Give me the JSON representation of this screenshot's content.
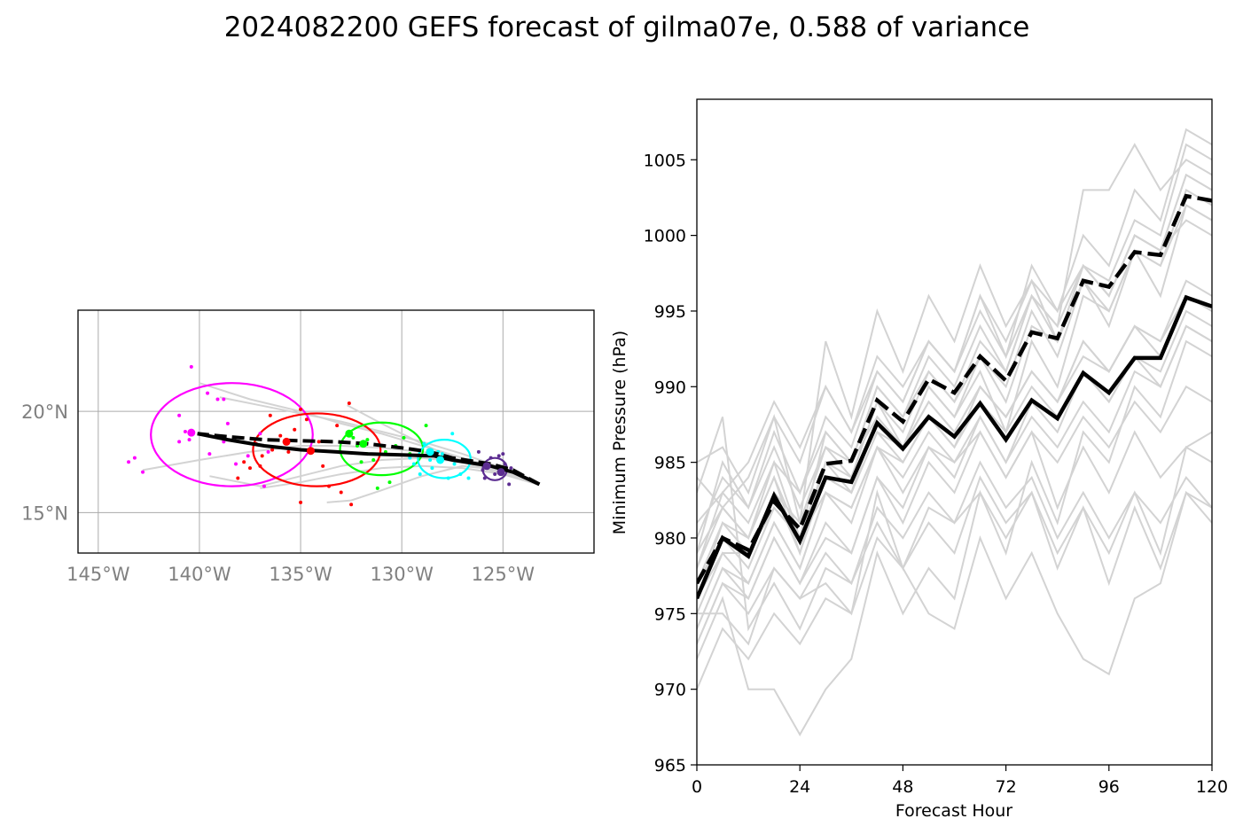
{
  "figure": {
    "title": "2024082200 GEFS forecast of gilma07e, 0.588 of variance"
  },
  "chart_data": [
    {
      "type": "scatter",
      "panel": "track-map",
      "x_ticks": [
        "145°W",
        "140°W",
        "135°W",
        "130°W",
        "125°W"
      ],
      "y_ticks": [
        "15°N",
        "20°N"
      ],
      "xlim": [
        -146,
        -120.5
      ],
      "ylim": [
        13,
        25
      ],
      "grid": true,
      "colors": {
        "ellipse_0": "#ff00ff",
        "ellipse_1": "#ff0000",
        "ellipse_2": "#00ff00",
        "ellipse_3": "#00ffff",
        "ellipse_4": "#5c2d91",
        "members": "#d3d3d3",
        "mean": "#000000"
      },
      "mean_track": {
        "lon": [
          -123.2,
          -124.5,
          -125.6,
          -127.5,
          -128.4,
          -130,
          -131.7,
          -133.3,
          -135,
          -136.8,
          -138.6,
          -140.1
        ],
        "lat": [
          16.4,
          17.0,
          17.3,
          17.6,
          17.8,
          17.85,
          17.9,
          18.0,
          18.1,
          18.3,
          18.6,
          18.9
        ]
      },
      "dashed_track": {
        "lon": [
          -123.2,
          -124.5,
          -125.6,
          -127.5,
          -128.6,
          -130,
          -131.7,
          -133.3,
          -135,
          -136.8,
          -138.6,
          -140.1
        ],
        "lat": [
          16.4,
          17.1,
          17.4,
          17.7,
          18.0,
          18.2,
          18.4,
          18.5,
          18.55,
          18.6,
          18.75,
          18.9
        ]
      },
      "uncertainty_ellipses": [
        {
          "lon": -138.4,
          "lat": 18.85,
          "half_width_deg": 4.0,
          "half_height_deg": 2.55,
          "color": "#ff00ff"
        },
        {
          "lon": -134.2,
          "lat": 18.1,
          "half_width_deg": 3.15,
          "half_height_deg": 1.8,
          "color": "#ff0000"
        },
        {
          "lon": -131.0,
          "lat": 18.15,
          "half_width_deg": 2.05,
          "half_height_deg": 1.3,
          "color": "#00ff00"
        },
        {
          "lon": -127.9,
          "lat": 17.65,
          "half_width_deg": 1.3,
          "half_height_deg": 0.95,
          "color": "#00ffff"
        },
        {
          "lon": -125.4,
          "lat": 17.15,
          "half_width_deg": 0.6,
          "half_height_deg": 0.55,
          "color": "#5c2d91"
        }
      ],
      "member_positions": [
        {
          "color": "#ff00ff",
          "lon": [
            -140.4,
            -139.6,
            -139.1,
            -138.8,
            -141.0,
            -140.7,
            -142.8,
            -143.2,
            -143.5,
            -140.5,
            -138.6,
            -136.6,
            -137.0,
            -136.8,
            -139.5,
            -141.0,
            -137.6,
            -138.2,
            -138.8
          ],
          "lat": [
            22.2,
            20.9,
            20.6,
            20.6,
            19.8,
            19.0,
            17.0,
            17.7,
            17.5,
            18.6,
            19.4,
            18.0,
            18.9,
            16.3,
            17.9,
            18.5,
            17.8,
            17.4,
            18.5
          ]
        },
        {
          "color": "#ff0000",
          "lon": [
            -132.6,
            -135.0,
            -134.7,
            -135.3,
            -136.0,
            -137.2,
            -136.4,
            -136.9,
            -137.8,
            -137.5,
            -138.1,
            -133.9,
            -133.6,
            -133.0,
            -134.1,
            -135.6,
            -132.5,
            -135.0,
            -133.2,
            -136.5,
            -137.0
          ],
          "lat": [
            20.4,
            20.1,
            19.6,
            19.1,
            18.8,
            18.4,
            18.1,
            17.8,
            17.5,
            17.2,
            16.7,
            17.3,
            16.3,
            16.0,
            18.5,
            18.0,
            15.4,
            15.5,
            19.3,
            19.8,
            17.3
          ]
        },
        {
          "color": "#00ff00",
          "lon": [
            -129.9,
            -130.8,
            -131.4,
            -132.4,
            -131.0,
            -131.7,
            -132.6,
            -130.3,
            -129.6,
            -131.2,
            -130.6,
            -132.0,
            -131.7,
            -133.1,
            -132.2,
            -128.8
          ],
          "lat": [
            18.7,
            18.0,
            17.6,
            18.7,
            18.3,
            17.9,
            19.0,
            18.3,
            17.9,
            16.2,
            16.5,
            17.5,
            18.6,
            18.0,
            18.3,
            19.3
          ]
        },
        {
          "color": "#00ffff",
          "lon": [
            -127.5,
            -128.2,
            -128.6,
            -129.4,
            -128.0,
            -127.7,
            -126.7,
            -127.1,
            -128.9,
            -129.1,
            -127.4,
            -128.5,
            -129.6
          ],
          "lat": [
            18.9,
            18.0,
            17.6,
            17.4,
            17.9,
            16.7,
            16.7,
            16.9,
            18.4,
            16.9,
            17.4,
            17.2,
            17.7
          ]
        },
        {
          "color": "#5c2d91",
          "lon": [
            -126.2,
            -125.6,
            -125.2,
            -124.9,
            -124.6,
            -125.4,
            -126.0,
            -125.9,
            -124.7,
            -125.0
          ],
          "lat": [
            18.0,
            17.7,
            17.8,
            17.4,
            17.2,
            16.9,
            17.1,
            16.7,
            16.4,
            17.9
          ]
        }
      ],
      "track_points": [
        {
          "lon": -140.4,
          "lat": 18.95,
          "color": "#ff00ff"
        },
        {
          "lon": -135.7,
          "lat": 18.5,
          "color": "#ff0000"
        },
        {
          "lon": -134.5,
          "lat": 18.05,
          "color": "#ff0000"
        },
        {
          "lon": -132.6,
          "lat": 18.9,
          "color": "#00ff00"
        },
        {
          "lon": -131.9,
          "lat": 18.4,
          "color": "#00ff00"
        },
        {
          "lon": -128.1,
          "lat": 17.6,
          "color": "#00ffff"
        },
        {
          "lon": -128.6,
          "lat": 18.0,
          "color": "#00ffff"
        },
        {
          "lon": -125.8,
          "lat": 17.3,
          "color": "#5c2d91"
        },
        {
          "lon": -125.1,
          "lat": 17.0,
          "color": "#5c2d91"
        }
      ],
      "member_tracks": [
        {
          "lon": [
            -123.3,
            -125,
            -127,
            -129,
            -131,
            -133,
            -135,
            -137,
            -139.5
          ],
          "lat": [
            16.4,
            17.0,
            17.5,
            17.7,
            17.6,
            17.3,
            16.8,
            16.3,
            16.8
          ]
        },
        {
          "lon": [
            -123.3,
            -125,
            -127,
            -129,
            -131,
            -133,
            -135,
            -137.5,
            -140
          ],
          "lat": [
            16.4,
            17.1,
            17.7,
            18.3,
            18.9,
            19.4,
            20.0,
            20.6,
            21.4
          ]
        },
        {
          "lon": [
            -123.3,
            -125,
            -127,
            -129,
            -131,
            -132.5,
            -133.7
          ],
          "lat": [
            16.4,
            17.1,
            17.3,
            16.8,
            16.1,
            15.6,
            15.5
          ]
        },
        {
          "lon": [
            -123.3,
            -125,
            -127,
            -129,
            -131,
            -133,
            -135,
            -137.5,
            -140,
            -142.8
          ],
          "lat": [
            16.4,
            17.0,
            17.6,
            18.0,
            18.2,
            18.3,
            18.3,
            18.0,
            17.6,
            17.1
          ]
        },
        {
          "lon": [
            -123.3,
            -125,
            -127,
            -129,
            -131,
            -133,
            -135,
            -137,
            -139
          ],
          "lat": [
            16.4,
            17.2,
            17.9,
            18.5,
            19.0,
            19.5,
            19.9,
            20.3,
            20.7
          ]
        },
        {
          "lon": [
            -123.3,
            -125,
            -127,
            -129,
            -131,
            -133,
            -135,
            -137
          ],
          "lat": [
            16.4,
            16.9,
            17.2,
            17.3,
            17.2,
            16.9,
            16.5,
            16.2
          ]
        },
        {
          "lon": [
            -123.3,
            -125,
            -127,
            -129,
            -131,
            -132.7
          ],
          "lat": [
            16.4,
            16.9,
            17.5,
            18.4,
            19.4,
            20.3
          ]
        }
      ]
    },
    {
      "type": "line",
      "panel": "pressure",
      "xlabel": "Forecast Hour",
      "ylabel": "Minimum Pressure (hPa)",
      "xlim": [
        0,
        120
      ],
      "ylim": [
        965,
        1009
      ],
      "x_ticks": [
        0,
        24,
        48,
        72,
        96,
        120
      ],
      "y_ticks": [
        965,
        970,
        975,
        980,
        985,
        990,
        995,
        1000,
        1005
      ],
      "x": [
        0,
        6,
        12,
        18,
        24,
        30,
        36,
        42,
        48,
        54,
        60,
        66,
        72,
        78,
        84,
        90,
        96,
        102,
        108,
        114,
        120
      ],
      "mean": [
        976,
        980,
        978.8,
        982.8,
        979.8,
        984,
        983.7,
        987.6,
        985.9,
        988,
        986.7,
        988.9,
        986.5,
        989.1,
        987.9,
        990.9,
        989.6,
        991.9,
        991.9,
        995.9,
        995.3
      ],
      "dashed": [
        977,
        980,
        979.2,
        982.4,
        980.6,
        984.9,
        985.1,
        989.1,
        987.7,
        990.5,
        989.6,
        992.0,
        990.4,
        993.6,
        993.2,
        997.0,
        996.6,
        998.9,
        998.7,
        1002.6,
        1002.3
      ],
      "members": [
        [
          978,
          983,
          981,
          985,
          980,
          987,
          985,
          990,
          988,
          991,
          989,
          992,
          989,
          994,
          993,
          998,
          997,
          1001,
          1000,
          1006,
          1005
        ],
        [
          975,
          979,
          977,
          981,
          978,
          983,
          981,
          986,
          984,
          987,
          985,
          988,
          985,
          988,
          986,
          989,
          987,
          991,
          990,
          994,
          993
        ],
        [
          977,
          981,
          980,
          984,
          979,
          985,
          984,
          989,
          986,
          990,
          988,
          991,
          987,
          993,
          990,
          996,
          995,
          999,
          998,
          1003,
          1002
        ],
        [
          972,
          976,
          970,
          970,
          967,
          970,
          972,
          979,
          975,
          978,
          976,
          983,
          979,
          985,
          981,
          987,
          985,
          990,
          988,
          993,
          992
        ],
        [
          979,
          985,
          982,
          987,
          983,
          988,
          986,
          991,
          989,
          993,
          991,
          996,
          992,
          998,
          995,
          1000,
          998,
          1003,
          1001,
          1007,
          1006
        ],
        [
          974,
          978,
          976,
          980,
          977,
          980,
          979,
          984,
          981,
          985,
          983,
          987,
          984,
          987,
          982,
          986,
          983,
          987,
          984,
          986,
          987
        ],
        [
          980,
          984,
          982,
          986,
          982,
          986,
          985,
          990,
          988,
          992,
          990,
          994,
          991,
          996,
          994,
          998,
          996,
          1000,
          999,
          1004,
          1003
        ],
        [
          973,
          977,
          975,
          978,
          976,
          979,
          977,
          982,
          980,
          983,
          981,
          985,
          982,
          984,
          980,
          983,
          980,
          983,
          981,
          984,
          982
        ],
        [
          976,
          980,
          979,
          983,
          979,
          984,
          983,
          987,
          986,
          989,
          987,
          990,
          988,
          991,
          989,
          992,
          991,
          994,
          993,
          996,
          995
        ],
        [
          978,
          982,
          980,
          984,
          980,
          985,
          983,
          988,
          986,
          990,
          988,
          992,
          990,
          995,
          992,
          997,
          995,
          999,
          998,
          1002,
          1001
        ],
        [
          970,
          974,
          972,
          975,
          973,
          976,
          975,
          980,
          978,
          981,
          979,
          984,
          981,
          983,
          979,
          982,
          979,
          983,
          979,
          986,
          985
        ],
        [
          983,
          988,
          974,
          977,
          974,
          978,
          977,
          981,
          978,
          975,
          974,
          980,
          976,
          979,
          975,
          972,
          971,
          976,
          977,
          983,
          981
        ],
        [
          976,
          981,
          979,
          983,
          981,
          986,
          984,
          989,
          987,
          991,
          989,
          993,
          991,
          996,
          993,
          998,
          996,
          1000,
          999,
          1004,
          1003
        ],
        [
          974,
          978,
          977,
          981,
          978,
          983,
          982,
          986,
          985,
          988,
          986,
          990,
          988,
          991,
          989,
          993,
          991,
          994,
          993,
          997,
          996
        ],
        [
          977,
          980,
          978,
          982,
          980,
          984,
          983,
          987,
          985,
          988,
          986,
          989,
          987,
          990,
          988,
          991,
          989,
          992,
          990,
          994,
          993
        ],
        [
          985,
          986,
          983,
          988,
          981,
          993,
          988,
          995,
          991,
          996,
          993,
          998,
          994,
          997,
          993,
          997,
          994,
          999,
          996,
          1002,
          1001
        ],
        [
          981,
          983,
          985,
          989,
          986,
          990,
          987,
          992,
          990,
          993,
          991,
          995,
          992,
          996,
          994,
          1003,
          1003,
          1006,
          1003,
          1005,
          1004
        ],
        [
          975,
          975,
          973,
          978,
          976,
          977,
          975,
          983,
          978,
          982,
          981,
          983,
          980,
          983,
          978,
          982,
          977,
          982,
          978,
          983,
          982
        ],
        [
          979,
          982,
          984,
          988,
          985,
          990,
          987,
          991,
          989,
          993,
          991,
          996,
          993,
          997,
          995,
          998,
          996,
          1000,
          999,
          1001,
          1000
        ],
        [
          973,
          977,
          976,
          980,
          977,
          981,
          979,
          984,
          982,
          986,
          984,
          988,
          985,
          989,
          987,
          991,
          989,
          992,
          991,
          995,
          994
        ],
        [
          984,
          982,
          980,
          985,
          983,
          987,
          985,
          988,
          986,
          989,
          987,
          990,
          988,
          991,
          989,
          993,
          991,
          994,
          992,
          996,
          995
        ],
        [
          976,
          979,
          979,
          982,
          980,
          983,
          982,
          986,
          983,
          986,
          985,
          987,
          984,
          987,
          985,
          988,
          986,
          989,
          987,
          990,
          989
        ]
      ]
    }
  ]
}
